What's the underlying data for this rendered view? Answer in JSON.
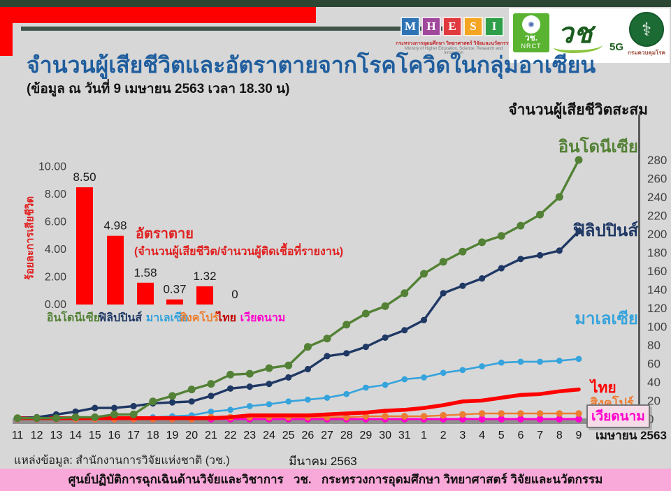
{
  "header": {
    "mhesi_logo": {
      "letters": [
        "M",
        "H",
        "E",
        "S",
        "I"
      ],
      "letter_colors": [
        "#2E74B5",
        "#A0489B",
        "#E0393E",
        "#F4A522",
        "#2F9E49"
      ],
      "thai_caption": "กระทรวงการอุดมศึกษา วิทยาศาสตร์ วิจัยและนวัตกรรม",
      "eng_caption": "Ministry of Higher Education, Science, Research and Innovation"
    },
    "nrct_logo": {
      "line1": "วช.",
      "line2": "NRCT"
    },
    "fiveg_logo": {
      "text": "วช",
      "badge": "5G"
    },
    "ddc_logo": {
      "caption": "กรมควบคุมโรค"
    }
  },
  "title": "จำนวนผู้เสียชีวิตและอัตราตายจากโรคโควิดในกลุ่มอาเซียน",
  "subtitle": "(ข้อมูล ณ วันที่ 9 เมษายน 2563 เวลา 18.30 น)",
  "source_note": "แหล่งข้อมูล: สำนักงานการวิจัยแห่งชาติ (วช.)",
  "month_march": "มีนาคม 2563",
  "month_april": "เมษายน 2563",
  "footer": "ศูนย์ปฏิบัติการฉุกเฉินด้านวิจัยและวิชาการ   วช.   กระทรวงการอุดมศึกษา วิทยาศาสตร์ วิจัยและนวัตกรรม",
  "colors": {
    "page_bg": "#D7D7D7",
    "banner_red": "#FE0000",
    "top_bar_green": "#2B4633",
    "footer_pink": "#F9A9D9",
    "title_blue": "#205E9E",
    "axis_gray": "#8F8F8F"
  },
  "chart_data": [
    {
      "type": "bar",
      "title": "อัตราตาย",
      "subtitle": "(จำนวนผู้เสียชีวิต/จำนวนผู้ติดเชื้อที่รายงาน)",
      "ylabel": "ร้อยละการเสียชีวิต",
      "categories": [
        "อินโดนีเซีย",
        "ฟิลิปปินส์",
        "มาเลเซีย",
        "สิงคโปร์",
        "ไทย",
        "เวียดนาม"
      ],
      "category_colors": [
        "#538135",
        "#1F3864",
        "#33A2DB",
        "#ED7D31",
        "#C00000",
        "#FF00CC"
      ],
      "values": [
        8.5,
        4.98,
        1.58,
        0.37,
        1.32,
        0
      ],
      "value_labels": [
        "8.50",
        "4.98",
        "1.58",
        "0.37",
        "1.32",
        "0"
      ],
      "bar_color": "#FF0000",
      "ylim": [
        0,
        10
      ],
      "yticks": [
        "0.00",
        "2.00",
        "4.00",
        "6.00",
        "8.00",
        "10.00"
      ],
      "grid": false
    },
    {
      "type": "line",
      "title": "จำนวนผู้เสียชีวิตสะสม",
      "x_labels": [
        "11",
        "12",
        "13",
        "14",
        "15",
        "16",
        "17",
        "18",
        "19",
        "20",
        "21",
        "22",
        "23",
        "24",
        "25",
        "26",
        "27",
        "28",
        "29",
        "30",
        "31",
        "1",
        "2",
        "3",
        "4",
        "5",
        "6",
        "7",
        "8",
        "9"
      ],
      "x_month_labels": [
        "มีนาคม 2563",
        "เมษายน 2563"
      ],
      "ylim": [
        0,
        280
      ],
      "ytick_step": 20,
      "grid": false,
      "legend_position": "right-inline",
      "series": [
        {
          "key": "indonesia",
          "name": "อินโดนีเซีย",
          "color": "#538135",
          "values": [
            1,
            1,
            1,
            2,
            2,
            5,
            5,
            19,
            25,
            32,
            38,
            48,
            49,
            55,
            58,
            78,
            87,
            102,
            114,
            122,
            136,
            157,
            170,
            181,
            191,
            198,
            209,
            221,
            240,
            280
          ]
        },
        {
          "key": "philippines",
          "name": "ฟิลิปปินส์",
          "color": "#1F3864",
          "values": [
            1,
            2,
            5,
            8,
            12,
            12,
            14,
            17,
            18,
            19,
            25,
            33,
            35,
            38,
            45,
            54,
            68,
            71,
            78,
            88,
            96,
            107,
            136,
            144,
            152,
            163,
            173,
            177,
            182,
            203
          ]
        },
        {
          "key": "malaysia",
          "name": "มาเลเซีย",
          "color": "#35A3DC",
          "values": [
            0,
            0,
            0,
            0,
            0,
            0,
            2,
            2,
            3,
            4,
            8,
            10,
            14,
            16,
            19,
            21,
            23,
            27,
            34,
            37,
            43,
            45,
            50,
            53,
            57,
            61,
            62,
            62,
            63,
            65
          ]
        },
        {
          "key": "thailand",
          "name": "ไทย",
          "color": "#FF0000",
          "values": [
            1,
            1,
            1,
            1,
            1,
            1,
            1,
            1,
            1,
            1,
            1,
            2,
            4,
            4,
            4,
            4,
            5,
            6,
            7,
            9,
            10,
            12,
            15,
            19,
            20,
            23,
            26,
            27,
            30,
            32
          ]
        },
        {
          "key": "singapore",
          "name": "สิงคโปร์",
          "color": "#ED7D31",
          "values": [
            0,
            0,
            0,
            0,
            0,
            0,
            0,
            0,
            0,
            0,
            2,
            2,
            2,
            2,
            2,
            2,
            2,
            2,
            3,
            3,
            3,
            3,
            4,
            5,
            6,
            6,
            6,
            6,
            6,
            6
          ]
        },
        {
          "key": "vietnam",
          "name": "เวียดนาม",
          "color": "#FF00CC",
          "values": [
            0,
            0,
            0,
            0,
            0,
            0,
            0,
            0,
            0,
            0,
            0,
            0,
            0,
            0,
            0,
            0,
            0,
            0,
            0,
            0,
            0,
            0,
            0,
            0,
            0,
            0,
            0,
            0,
            0,
            0
          ]
        }
      ]
    }
  ]
}
